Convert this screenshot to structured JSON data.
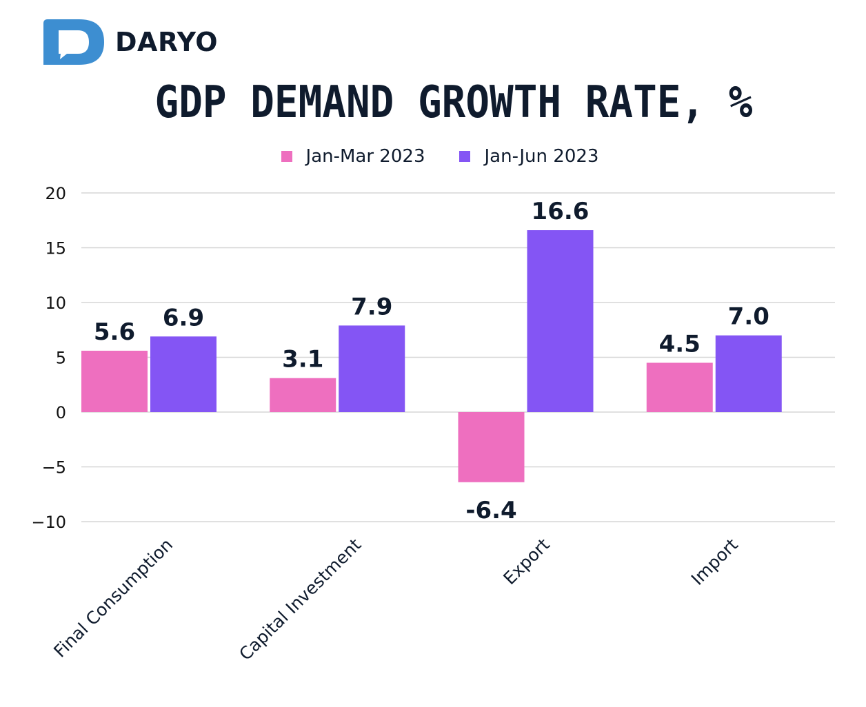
{
  "brand": {
    "name": "DARYO",
    "icon": "speech-bubble-d-logo",
    "color": "#3d8ed1"
  },
  "chart_data": {
    "type": "bar",
    "title": "GDP DEMAND GROWTH RATE, %",
    "categories": [
      "Final Consumption",
      "Capital Investment",
      "Export",
      "Import"
    ],
    "series": [
      {
        "name": "Jan-Mar 2023",
        "color": "#ee6fbf",
        "values": [
          5.6,
          3.1,
          -6.4,
          4.5
        ],
        "labels": [
          "5.6",
          "3.1",
          "-6.4",
          "4.5"
        ]
      },
      {
        "name": "Jan-Jun 2023",
        "color": "#8455f4",
        "values": [
          6.9,
          7.9,
          16.6,
          7.0
        ],
        "labels": [
          "6.9",
          "7.9",
          "16.6",
          "7.0"
        ]
      }
    ],
    "ylim": [
      -10,
      20
    ],
    "yticks": [
      "20",
      "15",
      "10",
      "5",
      "0",
      "−5",
      "−10"
    ],
    "negative_label_color": "#e8392b",
    "legend": "top-center",
    "grid": true
  }
}
